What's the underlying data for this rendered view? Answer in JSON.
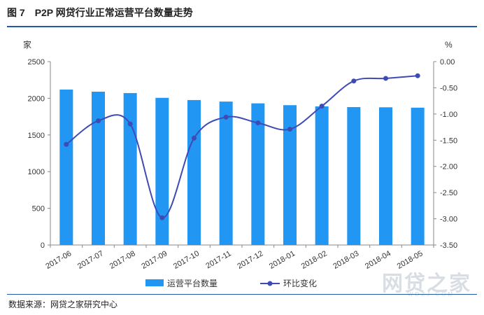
{
  "figure": {
    "number": "图 7",
    "title": "P2P 网贷行业正常运营平台数量走势",
    "source": "数据来源：网贷之家研究中心",
    "watermark": "网贷之家",
    "watermark_sub": "WDZJ.COM"
  },
  "chart_data": {
    "type": "bar",
    "categories": [
      "2017-06",
      "2017-07",
      "2017-08",
      "2017-09",
      "2017-10",
      "2017-11",
      "2017-12",
      "2018-01",
      "2018-02",
      "2018-03",
      "2018-04",
      "2018-05"
    ],
    "series": [
      {
        "name": "运营平台数量",
        "type": "bar",
        "axis": "left",
        "color": "#2196f3",
        "values": [
          2119,
          2090,
          2071,
          2006,
          1976,
          1955,
          1931,
          1906,
          1889,
          1880,
          1877,
          1872
        ]
      },
      {
        "name": "环比变化",
        "type": "line",
        "axis": "right",
        "color": "#3f4bb5",
        "values": [
          -1.58,
          -1.13,
          -1.19,
          -2.98,
          -1.46,
          -1.06,
          -1.17,
          -1.29,
          -0.85,
          -0.37,
          -0.32,
          -0.27
        ]
      }
    ],
    "left_axis": {
      "unit": "家",
      "min": 0,
      "max": 2500,
      "ticks": [
        0,
        500,
        1000,
        1500,
        2000,
        2500
      ]
    },
    "right_axis": {
      "unit": "%",
      "min": -3.5,
      "max": 0,
      "ticks": [
        "0.00",
        "-0.50",
        "-1.00",
        "-1.50",
        "-2.00",
        "-2.50",
        "-3.00",
        "-3.50"
      ]
    },
    "legend": {
      "position": "bottom"
    },
    "grid": false
  }
}
